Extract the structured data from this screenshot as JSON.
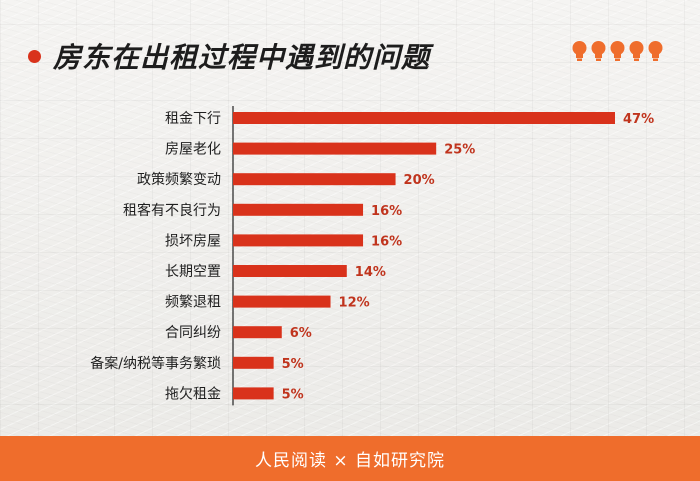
{
  "header": {
    "title": "房东在出租过程中遇到的问题",
    "accent": "#d9321b",
    "icons": [
      "bulb-icon",
      "bulb-icon",
      "bulb-icon",
      "bulb-icon",
      "bulb-icon"
    ]
  },
  "chart_data": {
    "type": "bar",
    "orientation": "horizontal",
    "title": "房东在出租过程中遇到的问题",
    "categories": [
      "租金下行",
      "房屋老化",
      "政策频繁变动",
      "租客有不良行为",
      "损坏房屋",
      "长期空置",
      "频繁退租",
      "合同纠纷",
      "备案/纳税等事务繁琐",
      "拖欠租金"
    ],
    "values": [
      47,
      25,
      20,
      16,
      16,
      14,
      12,
      6,
      5,
      5
    ],
    "value_labels": [
      "47%",
      "25%",
      "20%",
      "16%",
      "16%",
      "14%",
      "12%",
      "6%",
      "5%",
      "5%"
    ],
    "unit": "%",
    "xlim": [
      0,
      47
    ],
    "bar_color": "#d9321b",
    "label_color": "#c0341d",
    "grid": false,
    "legend": "none"
  },
  "footer": {
    "text": "人民阅读 × 自如研究院",
    "background": "#ef6d2c"
  }
}
